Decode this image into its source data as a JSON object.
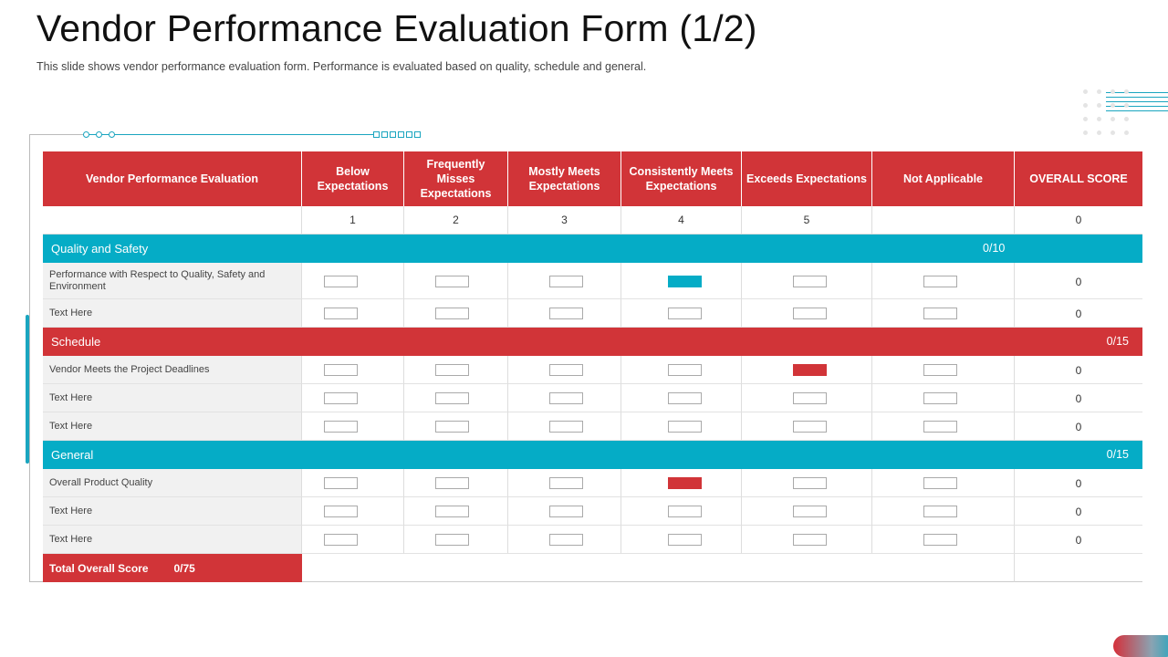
{
  "title": "Vendor Performance Evaluation Form (1/2)",
  "subtitle": "This slide shows vendor performance  evaluation  form.  Performance  is evaluated  based  on quality,  schedule  and general.",
  "colors": {
    "red": "#d13438",
    "teal": "#05acc6"
  },
  "table": {
    "headers": [
      "Vendor Performance Evaluation",
      "Below Expectations",
      "Frequently Misses Expectations",
      "Mostly Meets Expectations",
      "Consistently Meets Expectations",
      "Exceeds Expectations",
      "Not Applicable",
      "OVERALL SCORE"
    ],
    "scale": [
      "1",
      "2",
      "3",
      "4",
      "5",
      "",
      "0"
    ],
    "sections": [
      {
        "name": "Quality and Safety",
        "score": "0/10",
        "color": "teal",
        "rows": [
          {
            "label": "Performance with Respect to Quality, Safety and Environment",
            "selected_rating": 4,
            "overall": "0"
          },
          {
            "label": "Text Here",
            "selected_rating": null,
            "overall": "0"
          }
        ]
      },
      {
        "name": "Schedule",
        "score": "0/15",
        "color": "red",
        "rows": [
          {
            "label": "Vendor Meets the Project Deadlines",
            "selected_rating": 5,
            "overall": "0"
          },
          {
            "label": "Text Here",
            "selected_rating": null,
            "overall": "0"
          },
          {
            "label": "Text Here",
            "selected_rating": null,
            "overall": "0"
          }
        ]
      },
      {
        "name": "General",
        "score": "0/15",
        "color": "teal",
        "rows": [
          {
            "label": "Overall Product Quality",
            "selected_rating": 4,
            "overall": "0"
          },
          {
            "label": "Text Here",
            "selected_rating": null,
            "overall": "0"
          },
          {
            "label": "Text Here",
            "selected_rating": null,
            "overall": "0"
          }
        ]
      }
    ],
    "total": {
      "label": "Total Overall Score",
      "value": "0/75"
    }
  }
}
